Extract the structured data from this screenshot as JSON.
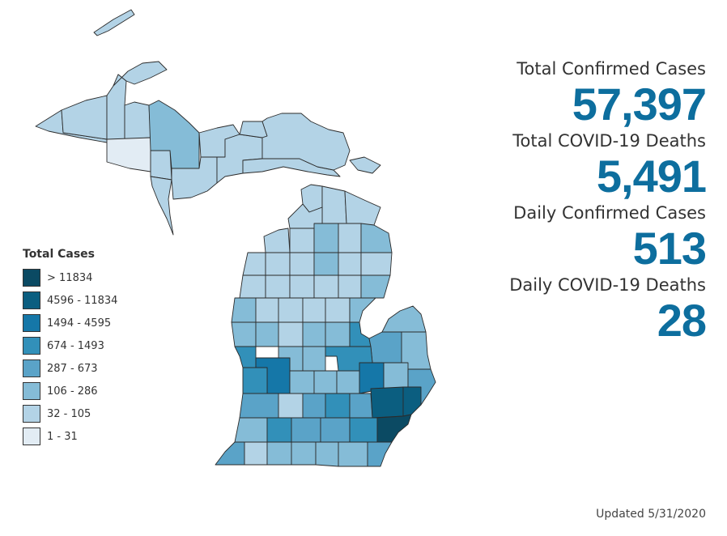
{
  "legend": {
    "title": "Total Cases",
    "items": [
      {
        "label": "> 11834",
        "color": "#0b4a63"
      },
      {
        "label": "4596 - 11834",
        "color": "#0b5e80"
      },
      {
        "label": "1494 - 4595",
        "color": "#1577a8"
      },
      {
        "label": "674 - 1493",
        "color": "#3290b9"
      },
      {
        "label": "287 - 673",
        "color": "#5aa3c8"
      },
      {
        "label": "106 - 286",
        "color": "#85bcd7"
      },
      {
        "label": "32 - 105",
        "color": "#b3d3e6"
      },
      {
        "label": "1 - 31",
        "color": "#e2ecf4"
      }
    ]
  },
  "stats": [
    {
      "label": "Total Confirmed Cases",
      "value": "57,397"
    },
    {
      "label": "Total COVID-19 Deaths",
      "value": "5,491"
    },
    {
      "label": "Daily Confirmed Cases",
      "value": "513"
    },
    {
      "label": "Daily COVID-19 Deaths",
      "value": "28"
    }
  ],
  "updated": "Updated 5/31/2020",
  "colors": {
    "accent": "#0d6e9e",
    "no_cases": "#ffffff"
  }
}
